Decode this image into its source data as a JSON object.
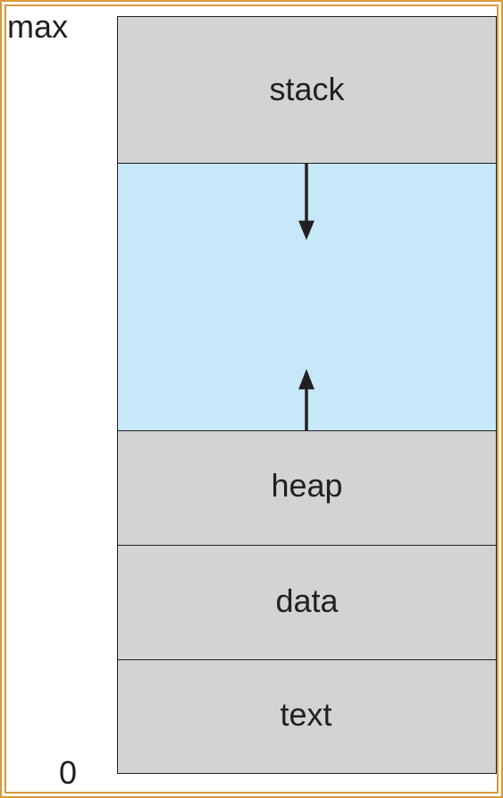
{
  "axis": {
    "max_label": "max",
    "min_label": "0"
  },
  "segments": {
    "stack": "stack",
    "heap": "heap",
    "data": "data",
    "text": "text"
  },
  "colors": {
    "frame": "#d9993a",
    "segment_fill": "#d1d3d4",
    "free_space_fill": "#c6e8f8",
    "stroke": "#231f20"
  }
}
